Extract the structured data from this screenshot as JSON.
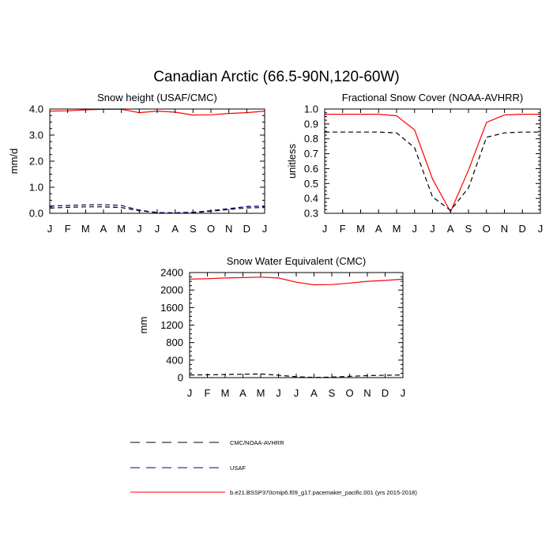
{
  "figure_title": "Canadian Arctic (66.5-90N,120-60W)",
  "chart_data": [
    {
      "type": "line",
      "title": "Snow height (USAF/CMC)",
      "xlabel": "",
      "ylabel": "mm/d",
      "categories": [
        "J",
        "F",
        "M",
        "A",
        "M",
        "J",
        "J",
        "A",
        "S",
        "O",
        "N",
        "D",
        "J"
      ],
      "ylim": [
        0,
        4.0
      ],
      "yticks": [
        "0.0",
        "1.0",
        "2.0",
        "3.0",
        "4.0"
      ],
      "series": [
        {
          "name": "b.e21.BSSP370cmip6.f09_g17.pacemaker_pacific.001 (yrs 2015-2018)",
          "color": "#ff0000",
          "dash": "solid",
          "values": [
            3.92,
            3.93,
            3.97,
            3.99,
            3.99,
            3.86,
            3.92,
            3.88,
            3.77,
            3.78,
            3.83,
            3.86,
            3.92
          ]
        },
        {
          "name": "CMC/NOAA-AVHRR",
          "color": "#000000",
          "dash": "dashed",
          "values": [
            0.2,
            0.23,
            0.25,
            0.25,
            0.22,
            0.1,
            0.02,
            0.01,
            0.02,
            0.08,
            0.15,
            0.21,
            0.22
          ]
        },
        {
          "name": "USAF",
          "color": "#00008b",
          "dash": "dashed",
          "values": [
            0.28,
            0.3,
            0.32,
            0.33,
            0.3,
            0.12,
            0.03,
            0.02,
            0.04,
            0.1,
            0.18,
            0.26,
            0.28
          ]
        }
      ]
    },
    {
      "type": "line",
      "title": "Fractional Snow Cover (NOAA-AVHRR)",
      "xlabel": "",
      "ylabel": "unitless",
      "categories": [
        "J",
        "F",
        "M",
        "A",
        "M",
        "J",
        "J",
        "A",
        "S",
        "O",
        "N",
        "D",
        "J"
      ],
      "ylim": [
        0.3,
        1.0
      ],
      "yticks": [
        "0.3",
        "0.4",
        "0.5",
        "0.6",
        "0.7",
        "0.8",
        "0.9",
        "1.0"
      ],
      "series": [
        {
          "name": "b.e21.BSSP370cmip6.f09_g17.pacemaker_pacific.001 (yrs 2015-2018)",
          "color": "#ff0000",
          "dash": "solid",
          "values": [
            0.965,
            0.965,
            0.965,
            0.965,
            0.955,
            0.86,
            0.53,
            0.31,
            0.59,
            0.91,
            0.96,
            0.965,
            0.965
          ]
        },
        {
          "name": "CMC/NOAA-AVHRR",
          "color": "#000000",
          "dash": "dashed",
          "values": [
            0.845,
            0.845,
            0.845,
            0.845,
            0.84,
            0.74,
            0.41,
            0.32,
            0.47,
            0.81,
            0.84,
            0.845,
            0.845
          ]
        }
      ]
    },
    {
      "type": "line",
      "title": "Snow Water Equivalent (CMC)",
      "xlabel": "",
      "ylabel": "mm",
      "categories": [
        "J",
        "F",
        "M",
        "A",
        "M",
        "J",
        "J",
        "A",
        "S",
        "O",
        "N",
        "D",
        "J"
      ],
      "ylim": [
        0,
        2400
      ],
      "yticks": [
        "0",
        "400",
        "800",
        "1200",
        "1600",
        "2000",
        "2400"
      ],
      "series": [
        {
          "name": "b.e21.BSSP370cmip6.f09_g17.pacemaker_pacific.001 (yrs 2015-2018)",
          "color": "#ff0000",
          "dash": "solid",
          "values": [
            2250,
            2260,
            2275,
            2285,
            2295,
            2275,
            2180,
            2120,
            2125,
            2160,
            2200,
            2220,
            2250
          ]
        },
        {
          "name": "CMC/NOAA-AVHRR",
          "color": "#000000",
          "dash": "dashed",
          "values": [
            60,
            65,
            70,
            78,
            85,
            55,
            20,
            5,
            10,
            30,
            45,
            55,
            60
          ]
        }
      ]
    }
  ],
  "legend": [
    {
      "label": "CMC/NOAA-AVHRR",
      "color": "#000000",
      "dash": "dashed"
    },
    {
      "label": "USAF",
      "color": "#00008b",
      "dash": "dashed"
    },
    {
      "label": "b.e21.BSSP370cmip6.f09_g17.pacemaker_pacific.001 (yrs 2015-2018)",
      "color": "#ff0000",
      "dash": "solid"
    }
  ]
}
